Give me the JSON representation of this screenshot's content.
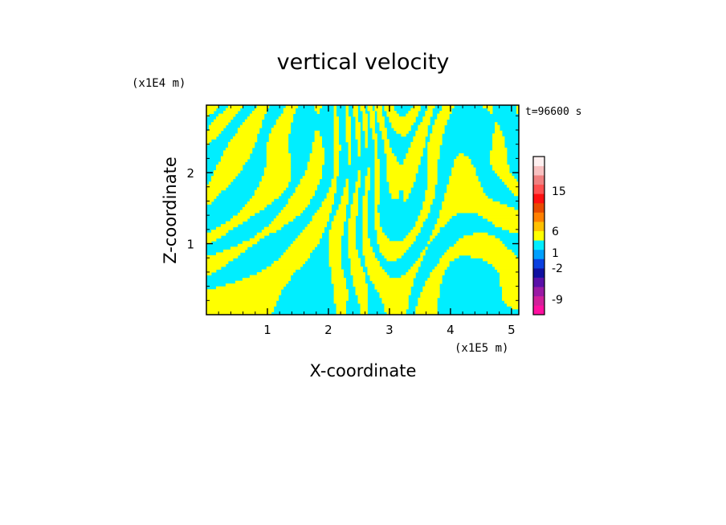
{
  "chart_data": {
    "type": "heatmap",
    "title": "vertical velocity",
    "xlabel": "X-coordinate",
    "ylabel": "Z-coordinate",
    "x_unit": "(x1E5 m)",
    "y_unit": "(x1E4 m)",
    "time_label": "t=96600 s",
    "xlim": [
      0,
      5.12
    ],
    "ylim": [
      0,
      2.95
    ],
    "x_ticks": [
      1,
      2,
      3,
      4,
      5
    ],
    "y_ticks": [
      1,
      2
    ],
    "x_tick_labels": [
      "1",
      "2",
      "3",
      "4",
      "5"
    ],
    "y_tick_labels": [
      "1",
      "2"
    ],
    "field_colors": {
      "positive": "#ffff00",
      "negative": "#00eeff"
    },
    "colorbar": {
      "label_values": [
        "15",
        "6",
        "1",
        "-2",
        "-9"
      ],
      "color_levels": [
        "#ff10a0",
        "#d0209a",
        "#9a1aa4",
        "#5a10a8",
        "#1010a0",
        "#0a40e0",
        "#00a0ff",
        "#00eeff",
        "#ffff00",
        "#ffc000",
        "#ff8000",
        "#e84a00",
        "#ff1010",
        "#ff5050",
        "#f08080",
        "#f8c0c0",
        "#fff0f0"
      ]
    }
  }
}
